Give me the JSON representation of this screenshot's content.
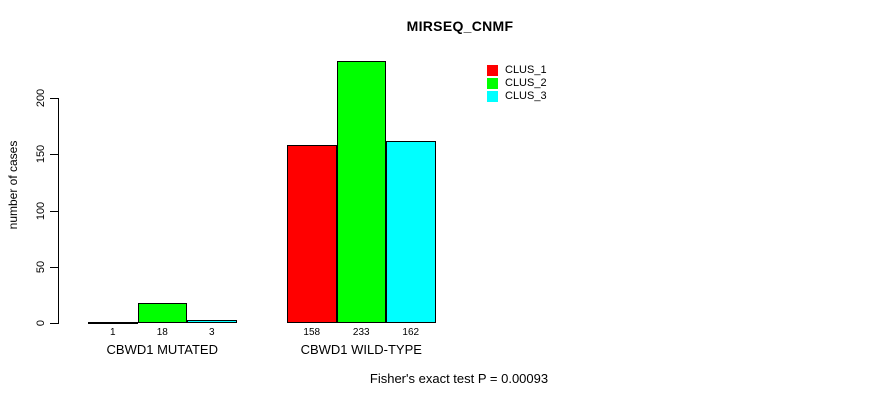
{
  "title": "MIRSEQ_CNMF",
  "y_axis": {
    "label": "number of cases",
    "ticks": [
      0,
      50,
      100,
      150,
      200
    ]
  },
  "legend": {
    "items": [
      {
        "label": "CLUS_1",
        "color": "#ff0000"
      },
      {
        "label": "CLUS_2",
        "color": "#00ff00"
      },
      {
        "label": "CLUS_3",
        "color": "#00ffff"
      }
    ]
  },
  "footer": "Fisher's exact test P = 0.00093",
  "chart_data": {
    "type": "bar",
    "title": "MIRSEQ_CNMF",
    "xlabel": "",
    "ylabel": "number of cases",
    "categories": [
      "CBWD1 MUTATED",
      "CBWD1 WILD-TYPE"
    ],
    "series": [
      {
        "name": "CLUS_1",
        "color": "#ff0000",
        "values": [
          1,
          158
        ]
      },
      {
        "name": "CLUS_2",
        "color": "#00ff00",
        "values": [
          18,
          233
        ]
      },
      {
        "name": "CLUS_3",
        "color": "#00ffff",
        "values": [
          3,
          162
        ]
      }
    ],
    "bar_value_labels": [
      [
        "1",
        "18",
        "3"
      ],
      [
        "158",
        "233",
        "162"
      ]
    ],
    "axis_tick_values": [
      0,
      50,
      100,
      150,
      200
    ],
    "ylim": [
      0,
      235
    ],
    "grid": false,
    "legend_position": "top-right",
    "annotation": "Fisher's exact test P = 0.00093"
  }
}
